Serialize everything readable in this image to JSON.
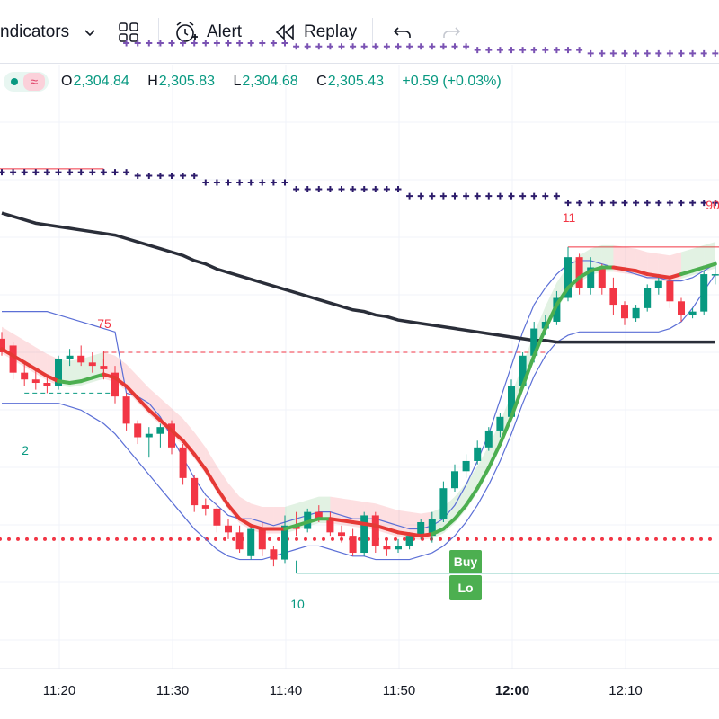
{
  "toolbar": {
    "indicators_label": "ndicators",
    "alert_label": "Alert",
    "replay_label": "Replay",
    "icons": [
      "chevron-down-icon",
      "layout-grid-icon",
      "alarm-clock-icon",
      "replay-icon",
      "undo-icon",
      "redo-icon"
    ]
  },
  "legend": {
    "open_key": "O",
    "open": "2,304.84",
    "high_key": "H",
    "high": "2,305.83",
    "low_key": "L",
    "low": "2,304.68",
    "close_key": "C",
    "close": "2,305.43",
    "change": "+0.59 (+0.03%)",
    "wave_symbol": "≈"
  },
  "time_axis": {
    "ticks": [
      "11:20",
      "11:30",
      "11:40",
      "11:50",
      "12:00",
      "12:10"
    ],
    "bold_tick": "12:00"
  },
  "labels": {
    "top_left": "75",
    "left_low": "2",
    "bottom_low": "10",
    "top_right_a": "11",
    "top_right_b": "90"
  },
  "signals": {
    "buy": "Buy",
    "second": "Lo"
  },
  "colors": {
    "up": "#089981",
    "down": "#f23645",
    "ma_up": "#4caf50",
    "ma_down": "#e53935",
    "ema": "#2a2e39",
    "channel": "#5b6fd6",
    "cross_series": "#2d1c6b",
    "cross_faded": "#7a52b3",
    "dot_line": "#f23645"
  },
  "candles": [
    [
      2309.6,
      2310.0,
      2308.6,
      2308.8
    ],
    [
      2309.2,
      2309.4,
      2307.2,
      2307.6
    ],
    [
      2307.6,
      2308.2,
      2306.8,
      2307.2
    ],
    [
      2307.2,
      2307.8,
      2306.6,
      2307.0
    ],
    [
      2307.0,
      2307.4,
      2306.4,
      2306.8
    ],
    [
      2306.8,
      2308.6,
      2306.6,
      2308.4
    ],
    [
      2308.4,
      2309.0,
      2308.0,
      2308.6
    ],
    [
      2308.6,
      2309.2,
      2308.0,
      2308.2
    ],
    [
      2308.2,
      2308.8,
      2307.6,
      2308.0
    ],
    [
      2308.0,
      2308.4,
      2307.2,
      2307.8
    ],
    [
      2307.6,
      2308.0,
      2305.8,
      2306.2
    ],
    [
      2306.2,
      2306.4,
      2304.2,
      2304.6
    ],
    [
      2304.6,
      2304.8,
      2303.4,
      2303.8
    ],
    [
      2303.8,
      2304.4,
      2302.6,
      2304.0
    ],
    [
      2304.0,
      2304.6,
      2303.2,
      2304.4
    ],
    [
      2304.6,
      2304.8,
      2302.8,
      2303.2
    ],
    [
      2303.2,
      2303.4,
      2301.0,
      2301.4
    ],
    [
      2301.4,
      2301.6,
      2299.4,
      2299.8
    ],
    [
      2299.8,
      2300.2,
      2299.2,
      2299.6
    ],
    [
      2299.6,
      2300.0,
      2298.2,
      2298.6
    ],
    [
      2298.6,
      2299.0,
      2297.8,
      2298.2
    ],
    [
      2298.2,
      2298.6,
      2297.0,
      2297.2
    ],
    [
      2296.8,
      2298.6,
      2296.6,
      2298.4
    ],
    [
      2298.4,
      2298.8,
      2296.8,
      2297.2
    ],
    [
      2297.2,
      2297.4,
      2296.2,
      2296.6
    ],
    [
      2296.6,
      2299.2,
      2296.4,
      2298.6
    ],
    [
      2298.6,
      2299.4,
      2298.0,
      2298.4
    ],
    [
      2298.4,
      2299.6,
      2298.2,
      2299.4
    ],
    [
      2299.4,
      2299.8,
      2298.8,
      2299.0
    ],
    [
      2299.0,
      2299.4,
      2298.0,
      2298.2
    ],
    [
      2298.2,
      2298.6,
      2297.6,
      2298.0
    ],
    [
      2298.0,
      2298.4,
      2296.8,
      2297.0
    ],
    [
      2297.0,
      2299.4,
      2296.8,
      2299.2
    ],
    [
      2299.2,
      2299.4,
      2297.0,
      2297.4
    ],
    [
      2297.4,
      2297.8,
      2296.8,
      2297.2
    ],
    [
      2297.2,
      2297.8,
      2297.0,
      2297.4
    ],
    [
      2297.4,
      2298.2,
      2297.2,
      2298.0
    ],
    [
      2298.0,
      2299.0,
      2297.8,
      2298.8
    ],
    [
      2298.0,
      2299.4,
      2297.6,
      2299.0
    ],
    [
      2299.0,
      2301.2,
      2298.8,
      2300.8
    ],
    [
      2300.8,
      2302.2,
      2300.6,
      2301.8
    ],
    [
      2301.8,
      2302.8,
      2301.4,
      2302.4
    ],
    [
      2302.4,
      2303.6,
      2302.2,
      2303.2
    ],
    [
      2303.2,
      2304.4,
      2303.0,
      2304.2
    ],
    [
      2304.2,
      2305.2,
      2303.8,
      2305.0
    ],
    [
      2305.0,
      2307.2,
      2304.8,
      2306.8
    ],
    [
      2306.8,
      2308.8,
      2306.6,
      2308.6
    ],
    [
      2308.6,
      2310.6,
      2308.2,
      2310.2
    ],
    [
      2310.2,
      2311.0,
      2309.8,
      2310.6
    ],
    [
      2310.6,
      2312.4,
      2310.4,
      2312.0
    ],
    [
      2312.0,
      2315.0,
      2311.8,
      2314.4
    ],
    [
      2314.4,
      2314.6,
      2312.2,
      2312.6
    ],
    [
      2312.6,
      2314.4,
      2312.2,
      2313.8
    ],
    [
      2313.8,
      2314.0,
      2312.2,
      2312.6
    ],
    [
      2312.6,
      2313.2,
      2311.0,
      2311.6
    ],
    [
      2311.6,
      2311.8,
      2310.4,
      2310.8
    ],
    [
      2310.8,
      2311.6,
      2310.6,
      2311.4
    ],
    [
      2311.4,
      2312.8,
      2311.2,
      2312.6
    ],
    [
      2312.6,
      2313.4,
      2312.2,
      2313.0
    ],
    [
      2313.0,
      2313.2,
      2311.4,
      2311.8
    ],
    [
      2311.8,
      2312.0,
      2310.6,
      2311.0
    ],
    [
      2311.0,
      2311.4,
      2310.8,
      2311.2
    ],
    [
      2311.2,
      2313.6,
      2311.0,
      2313.4
    ],
    [
      2313.4,
      2314.2,
      2312.8,
      2313.4
    ]
  ],
  "ema_series": [
    2317.0,
    2316.8,
    2316.6,
    2316.4,
    2316.3,
    2316.2,
    2316.1,
    2316.0,
    2315.9,
    2315.8,
    2315.7,
    2315.5,
    2315.3,
    2315.1,
    2314.9,
    2314.7,
    2314.5,
    2314.2,
    2314.0,
    2313.7,
    2313.5,
    2313.3,
    2313.1,
    2312.9,
    2312.7,
    2312.5,
    2312.3,
    2312.1,
    2311.9,
    2311.7,
    2311.5,
    2311.3,
    2311.2,
    2311.0,
    2310.9,
    2310.7,
    2310.6,
    2310.5,
    2310.4,
    2310.3,
    2310.2,
    2310.1,
    2310.0,
    2309.9,
    2309.8,
    2309.7,
    2309.6,
    2309.5,
    2309.5,
    2309.4,
    2309.4,
    2309.4,
    2309.4,
    2309.4,
    2309.4,
    2309.4,
    2309.4,
    2309.4,
    2309.4,
    2309.4,
    2309.4,
    2309.4,
    2309.4,
    2309.4
  ],
  "hull_series": [
    2309.0,
    2308.6,
    2308.2,
    2307.8,
    2307.4,
    2307.1,
    2307.0,
    2307.1,
    2307.3,
    2307.5,
    2307.3,
    2306.8,
    2306.1,
    2305.4,
    2304.8,
    2304.2,
    2303.6,
    2302.8,
    2301.9,
    2300.8,
    2299.8,
    2299.0,
    2298.6,
    2298.4,
    2298.4,
    2298.4,
    2298.6,
    2298.8,
    2299.0,
    2299.0,
    2298.9,
    2298.8,
    2298.7,
    2298.6,
    2298.4,
    2298.2,
    2298.1,
    2298.0,
    2298.1,
    2298.4,
    2299.0,
    2299.8,
    2300.8,
    2302.0,
    2303.4,
    2305.0,
    2306.8,
    2308.6,
    2310.2,
    2311.6,
    2312.6,
    2313.2,
    2313.6,
    2313.8,
    2313.8,
    2313.7,
    2313.6,
    2313.4,
    2313.3,
    2313.2,
    2313.4,
    2313.6,
    2313.8,
    2314.0
  ],
  "hull_up": [
    false,
    false,
    false,
    false,
    false,
    true,
    true,
    true,
    true,
    false,
    false,
    false,
    false,
    false,
    false,
    false,
    false,
    false,
    false,
    false,
    false,
    false,
    false,
    false,
    false,
    true,
    true,
    true,
    true,
    false,
    false,
    false,
    false,
    false,
    false,
    false,
    false,
    false,
    true,
    true,
    true,
    true,
    true,
    true,
    true,
    true,
    true,
    true,
    true,
    true,
    true,
    true,
    true,
    true,
    false,
    false,
    false,
    false,
    false,
    false,
    true,
    true,
    true,
    true
  ],
  "channel_upper": [
    2311.2,
    2311.2,
    2311.2,
    2311.2,
    2311.2,
    2311.0,
    2310.8,
    2310.6,
    2310.4,
    2310.2,
    2310.0,
    2306.4,
    2306.2,
    2305.8,
    2305.0,
    2303.8,
    2302.6,
    2301.4,
    2300.4,
    2299.8,
    2299.2,
    2299.0,
    2299.0,
    2298.8,
    2298.6,
    2298.8,
    2299.0,
    2299.2,
    2299.4,
    2299.4,
    2299.2,
    2299.0,
    2299.0,
    2299.0,
    2298.8,
    2298.6,
    2298.4,
    2298.4,
    2298.6,
    2299.0,
    2299.8,
    2301.0,
    2302.4,
    2304.0,
    2306.0,
    2308.0,
    2310.0,
    2311.6,
    2312.6,
    2313.4,
    2314.0,
    2314.2,
    2314.2,
    2314.0,
    2313.8,
    2313.6,
    2313.4,
    2313.2,
    2313.2,
    2313.0,
    2313.0,
    2313.2,
    2313.6,
    2314.0
  ],
  "channel_lower": [
    2305.8,
    2305.8,
    2305.8,
    2305.8,
    2305.8,
    2305.8,
    2305.6,
    2305.4,
    2305.0,
    2304.6,
    2304.0,
    2303.2,
    2302.4,
    2301.6,
    2300.8,
    2300.0,
    2299.2,
    2298.4,
    2297.8,
    2297.2,
    2296.8,
    2296.6,
    2296.6,
    2296.6,
    2296.8,
    2297.0,
    2297.2,
    2297.4,
    2297.4,
    2297.2,
    2297.0,
    2296.8,
    2296.8,
    2296.6,
    2296.6,
    2296.6,
    2296.6,
    2296.8,
    2297.0,
    2297.4,
    2298.0,
    2298.8,
    2299.8,
    2301.0,
    2302.4,
    2304.0,
    2305.8,
    2307.4,
    2308.6,
    2309.4,
    2309.8,
    2310.0,
    2310.0,
    2310.0,
    2310.0,
    2310.0,
    2310.0,
    2310.0,
    2310.0,
    2310.2,
    2310.6,
    2311.4,
    2312.4,
    2313.4
  ],
  "cross_series": [
    {
      "y": 2319.4,
      "from": 0,
      "to": 12
    },
    {
      "y": 2319.2,
      "from": 12,
      "to": 18
    },
    {
      "y": 2318.8,
      "from": 18,
      "to": 26
    },
    {
      "y": 2318.4,
      "from": 26,
      "to": 36
    },
    {
      "y": 2318.0,
      "from": 36,
      "to": 50
    },
    {
      "y": 2317.6,
      "from": 50,
      "to": 64
    }
  ],
  "cross_faded": [
    {
      "y": 2327.0,
      "from": 11,
      "to": 26
    },
    {
      "y": 2326.8,
      "from": 26,
      "to": 42
    },
    {
      "y": 2326.6,
      "from": 42,
      "to": 52
    },
    {
      "y": 2326.4,
      "from": 52,
      "to": 64
    }
  ],
  "levels": {
    "dotted_red": 2297.8,
    "dashed_red": 2308.8,
    "dashed_teal_left": 2306.4,
    "top_left_red": 2319.6,
    "top_right_red": 2315.0,
    "bottom_teal": 2295.8
  }
}
